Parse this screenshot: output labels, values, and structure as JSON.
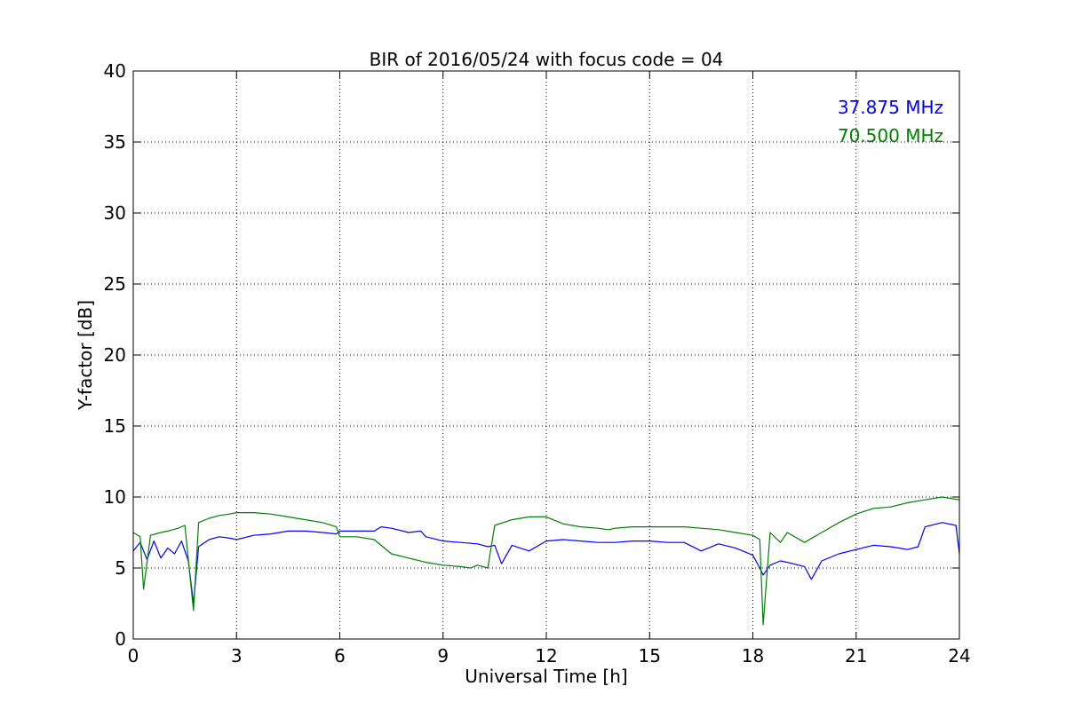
{
  "chart_data": {
    "type": "line",
    "title": "BIR of 2016/05/24 with focus code = 04",
    "xlabel": "Universal Time [h]",
    "ylabel": "Y-factor [dB]",
    "xlim": [
      0,
      24
    ],
    "ylim": [
      0,
      40
    ],
    "xticks": [
      0,
      3,
      6,
      9,
      12,
      15,
      18,
      21,
      24
    ],
    "yticks": [
      0,
      5,
      10,
      15,
      20,
      25,
      30,
      35,
      40
    ],
    "grid": true,
    "legend_position": "top-right",
    "series": [
      {
        "name": "37.875 MHz",
        "color": "#0000ff",
        "x": [
          0.0,
          0.2,
          0.4,
          0.6,
          0.8,
          1.0,
          1.2,
          1.4,
          1.6,
          1.75,
          1.9,
          2.2,
          2.5,
          2.8,
          3.0,
          3.5,
          4.0,
          4.5,
          5.0,
          5.5,
          5.9,
          6.0,
          6.5,
          7.0,
          7.2,
          7.5,
          8.0,
          8.35,
          8.5,
          9.0,
          9.5,
          10.0,
          10.3,
          10.5,
          10.7,
          11.0,
          11.5,
          12.0,
          12.5,
          13.0,
          13.5,
          14.0,
          14.5,
          15.0,
          15.5,
          16.0,
          16.5,
          17.0,
          17.5,
          18.0,
          18.2,
          18.3,
          18.5,
          18.8,
          19.0,
          19.5,
          19.7,
          20.0,
          20.5,
          21.0,
          21.5,
          22.0,
          22.5,
          22.8,
          23.0,
          23.5,
          23.9,
          24.0
        ],
        "values": [
          6.2,
          6.8,
          5.6,
          6.9,
          5.7,
          6.4,
          6.0,
          6.9,
          5.5,
          2.5,
          6.5,
          7.0,
          7.2,
          7.1,
          7.0,
          7.3,
          7.4,
          7.6,
          7.6,
          7.5,
          7.4,
          7.6,
          7.6,
          7.6,
          7.9,
          7.8,
          7.5,
          7.6,
          7.2,
          6.9,
          6.8,
          6.7,
          6.5,
          6.6,
          5.3,
          6.6,
          6.2,
          6.9,
          7.0,
          6.9,
          6.8,
          6.8,
          6.9,
          6.9,
          6.8,
          6.8,
          6.2,
          6.7,
          6.4,
          5.9,
          5.0,
          4.5,
          5.2,
          5.5,
          5.4,
          5.1,
          4.2,
          5.5,
          6.0,
          6.3,
          6.6,
          6.5,
          6.3,
          6.5,
          7.9,
          8.2,
          8.0,
          6.0
        ]
      },
      {
        "name": "70.500 MHz",
        "color": "#008000",
        "x": [
          0.0,
          0.2,
          0.3,
          0.5,
          0.8,
          1.0,
          1.3,
          1.5,
          1.75,
          1.9,
          2.2,
          2.5,
          2.8,
          3.0,
          3.5,
          4.0,
          4.5,
          5.0,
          5.5,
          5.9,
          6.0,
          6.5,
          7.0,
          7.5,
          8.0,
          8.5,
          9.0,
          9.5,
          9.8,
          10.0,
          10.3,
          10.5,
          11.0,
          11.5,
          12.0,
          12.3,
          12.5,
          13.0,
          13.5,
          13.8,
          14.0,
          14.5,
          15.0,
          15.5,
          16.0,
          16.5,
          17.0,
          17.5,
          18.0,
          18.2,
          18.3,
          18.5,
          18.8,
          19.0,
          19.5,
          20.0,
          20.5,
          21.0,
          21.5,
          22.0,
          22.5,
          23.0,
          23.5,
          24.0
        ],
        "values": [
          7.5,
          7.2,
          3.5,
          7.3,
          7.5,
          7.6,
          7.8,
          8.0,
          2.0,
          8.2,
          8.5,
          8.7,
          8.8,
          8.9,
          8.9,
          8.8,
          8.6,
          8.4,
          8.2,
          7.9,
          7.2,
          7.2,
          7.0,
          6.0,
          5.7,
          5.4,
          5.2,
          5.1,
          5.0,
          5.2,
          5.0,
          8.0,
          8.4,
          8.6,
          8.6,
          8.3,
          8.1,
          7.9,
          7.8,
          7.7,
          7.8,
          7.9,
          7.9,
          7.9,
          7.9,
          7.8,
          7.7,
          7.5,
          7.3,
          7.0,
          1.0,
          7.5,
          6.8,
          7.5,
          6.8,
          7.5,
          8.2,
          8.8,
          9.2,
          9.3,
          9.6,
          9.8,
          10.0,
          9.8
        ]
      }
    ]
  }
}
